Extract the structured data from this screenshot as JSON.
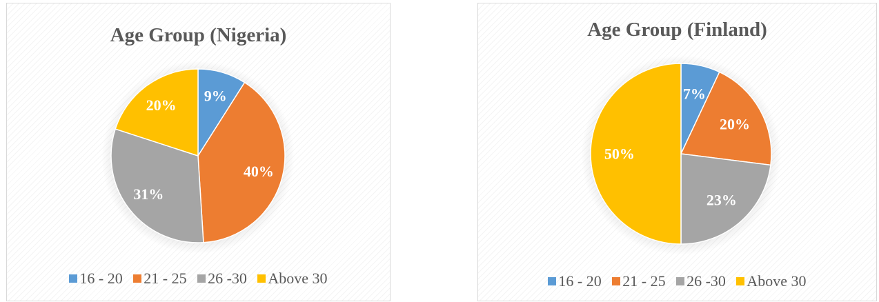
{
  "colors": {
    "16 - 20": "#5b9bd5",
    "21 - 25": "#ed7d31",
    "26 -30": "#a5a5a5",
    "Above 30": "#ffc000"
  },
  "chart_data": [
    {
      "type": "pie",
      "title": "Age Group (Nigeria)",
      "categories": [
        "16 - 20",
        "21 - 25",
        "26 -30",
        "Above 30"
      ],
      "values": [
        9,
        40,
        31,
        20
      ],
      "labels": [
        "9%",
        "40%",
        "31%",
        "20%"
      ],
      "legend_position": "bottom"
    },
    {
      "type": "pie",
      "title": "Age Group (Finland)",
      "categories": [
        "16 - 20",
        "21 - 25",
        "26 -30",
        "Above 30"
      ],
      "values": [
        7,
        20,
        23,
        50
      ],
      "labels": [
        "7%",
        "20%",
        "23%",
        "50%"
      ],
      "legend_position": "bottom"
    }
  ]
}
